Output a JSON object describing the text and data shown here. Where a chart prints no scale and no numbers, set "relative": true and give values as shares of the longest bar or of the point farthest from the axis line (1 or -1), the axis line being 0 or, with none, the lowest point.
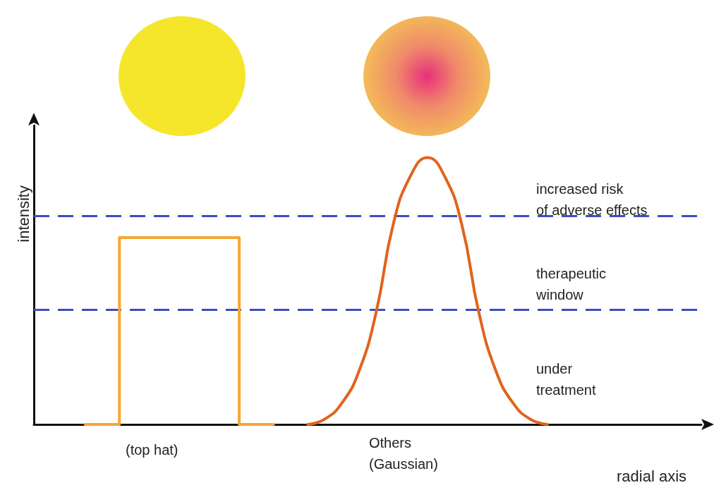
{
  "chart_data": {
    "type": "line",
    "relative": true,
    "xlabel": "radial axis",
    "ylabel": "intensity",
    "categories": [
      null,
      null,
      null,
      null,
      null,
      null,
      null,
      null,
      null,
      null,
      null,
      null,
      null,
      null,
      null,
      null,
      null,
      null,
      null,
      null,
      null,
      null,
      null,
      null,
      null,
      null,
      null,
      null,
      null,
      null,
      null,
      null,
      null,
      null,
      null,
      null,
      null,
      null,
      null,
      null
    ],
    "series": [
      {
        "type": "step",
        "color": "#f5a731",
        "values": [
          null,
          null,
          null,
          0,
          0,
          0,
          0.7,
          0.7,
          0.7,
          0.7,
          0.7,
          0.7,
          0.7,
          0,
          0,
          null,
          null,
          null,
          null,
          null,
          null,
          null,
          null,
          null,
          null,
          null,
          null,
          null,
          null,
          null,
          null,
          null,
          null,
          null,
          null,
          null,
          null,
          null,
          null,
          null
        ]
      },
      {
        "color": "#e0641c",
        "values": [
          null,
          null,
          null,
          null,
          null,
          null,
          null,
          null,
          null,
          null,
          null,
          null,
          null,
          null,
          null,
          null,
          0,
          0.02,
          0.08,
          0.2,
          0.42,
          0.75,
          0.93,
          1,
          0.93,
          0.75,
          0.42,
          0.2,
          0.08,
          0.02,
          0,
          null,
          null,
          null,
          null,
          null,
          null,
          null,
          null,
          null
        ]
      }
    ],
    "ref_lines": [
      {
        "axis": "y",
        "value": 0.78,
        "color": "#3b4cc0",
        "line_style": "dashed"
      },
      {
        "axis": "y",
        "value": 0.43,
        "color": "#3b4cc0",
        "line_style": "dashed"
      }
    ],
    "annotations": [
      "increased risk\nof adverse effects",
      "therapeutic\nwindow",
      "under\ntreatment",
      "(top hat)",
      "Others\n(Gaussian)"
    ],
    "marker": "none",
    "line_style": "solid",
    "grid": false
  }
}
